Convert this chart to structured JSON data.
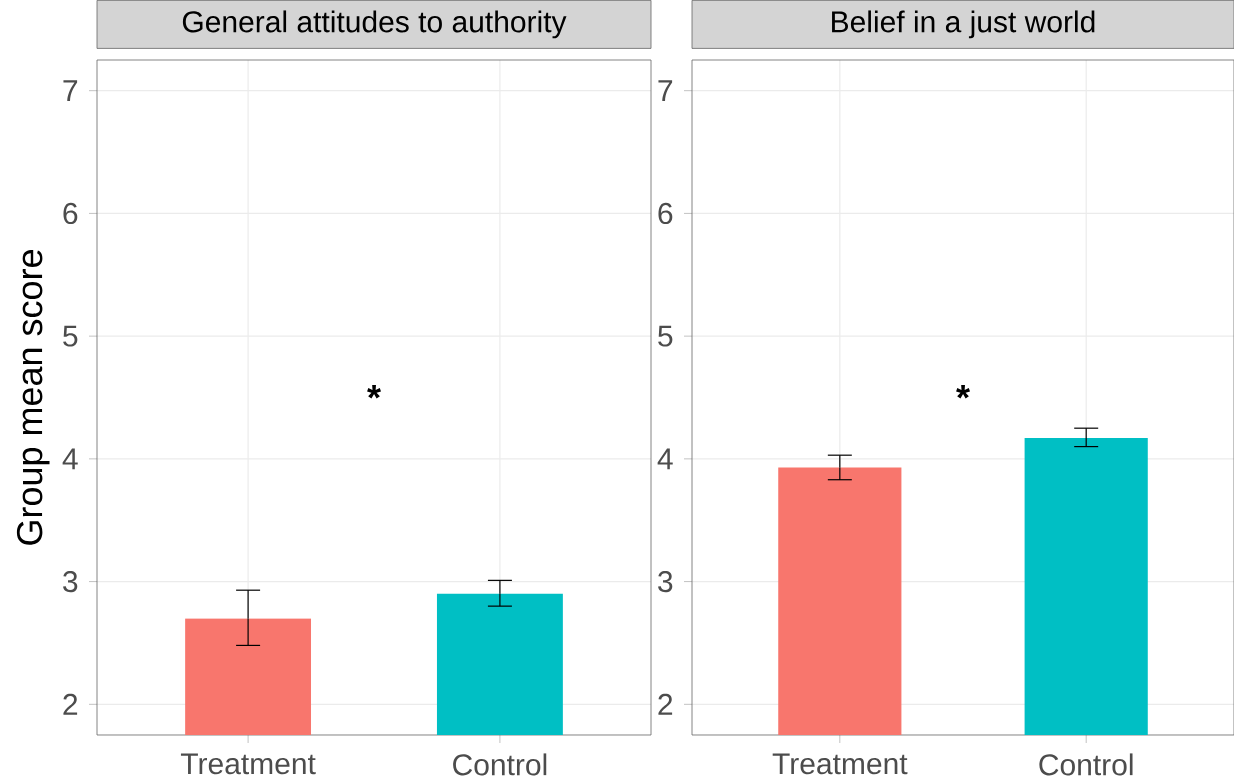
{
  "chart_data": [
    {
      "type": "bar",
      "title": "General attitudes to authority",
      "ylabel": "Group mean score",
      "categories": [
        "Treatment",
        "Control"
      ],
      "values": [
        2.7,
        2.9
      ],
      "colors": [
        "#f8766d",
        "#00bfc4"
      ],
      "errors": [
        [
          2.48,
          2.93
        ],
        [
          2.8,
          3.01
        ]
      ],
      "ylim": [
        1.75,
        7.25
      ],
      "yticks": [
        2,
        3,
        4,
        5,
        6,
        7
      ],
      "grid": true,
      "annotations": [
        "*"
      ]
    },
    {
      "type": "bar",
      "title": "Belief in a just world",
      "categories": [
        "Treatment",
        "Control"
      ],
      "values": [
        3.93,
        4.17
      ],
      "colors": [
        "#f8766d",
        "#00bfc4"
      ],
      "errors": [
        [
          3.83,
          4.03
        ],
        [
          4.1,
          4.25
        ]
      ],
      "ylim": [
        1.75,
        7.25
      ],
      "yticks": [
        2,
        3,
        4,
        5,
        6,
        7
      ],
      "grid": true,
      "annotations": [
        "*"
      ]
    }
  ]
}
